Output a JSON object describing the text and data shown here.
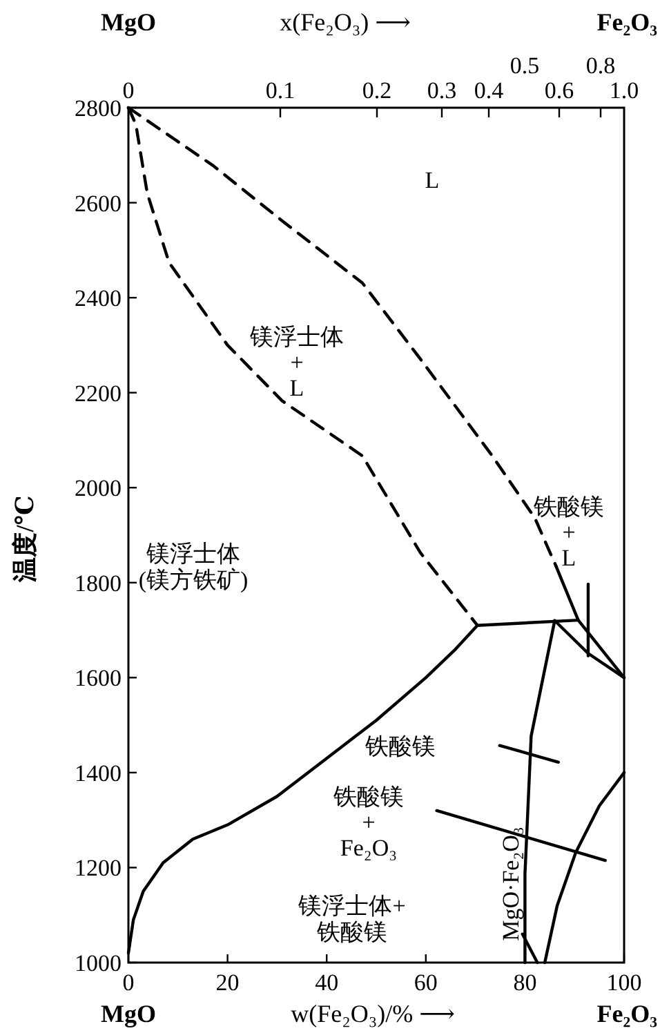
{
  "chart_data": {
    "type": "line",
    "xlabel": "w(Fe₂O₃)/% ⟶",
    "x2label": "x(Fe₂O₃) ⟶",
    "ylabel": "温度/℃",
    "xlim": [
      0,
      100
    ],
    "ylim": [
      1000,
      2800
    ],
    "xticks": [
      0,
      20,
      40,
      60,
      80,
      100
    ],
    "yticks": [
      1000,
      1200,
      1400,
      1600,
      1800,
      2000,
      2200,
      2400,
      2600,
      2800
    ],
    "grid": false,
    "series": [
      {
        "color": "#000000",
        "line_style": "dashed",
        "x": [
          0,
          17.1,
          31,
          47.2,
          58.9,
          73.4,
          82,
          86.25
        ],
        "values": [
          2800,
          2678,
          2562,
          2431,
          2271,
          2067,
          1936,
          1835
        ]
      },
      {
        "color": "#000000",
        "line_style": "dashed",
        "x": [
          0,
          1.5,
          3.8,
          8.2,
          20,
          31,
          47.2,
          58.9,
          70.4
        ],
        "values": [
          2800,
          2765,
          2620,
          2474,
          2300,
          2183,
          2067,
          1863,
          1710
        ]
      },
      {
        "color": "#000000",
        "line_style": "solid",
        "x": [
          86.25,
          90.75,
          100
        ],
        "values": [
          1835,
          1721,
          1600
        ]
      },
      {
        "color": "#000000",
        "line_style": "solid",
        "x": [
          70.4,
          90.75
        ],
        "values": [
          1710,
          1721
        ]
      },
      {
        "color": "#000000",
        "line_style": "solid",
        "x": [
          86,
          92.75,
          100
        ],
        "values": [
          1720,
          1651,
          1600
        ]
      },
      {
        "color": "#000000",
        "line_style": "solid",
        "x": [
          86,
          81.25,
          80,
          80
        ],
        "values": [
          1720,
          1477,
          1186,
          1000
        ]
      },
      {
        "color": "#000000",
        "line_style": "solid",
        "x": [
          0,
          1,
          3,
          7,
          13,
          20,
          30,
          40,
          50,
          60,
          66,
          70.4
        ],
        "values": [
          1020,
          1090,
          1150,
          1210,
          1260,
          1290,
          1350,
          1430,
          1510,
          1600,
          1660,
          1710
        ]
      },
      {
        "color": "#000000",
        "line_style": "solid",
        "x": [
          84,
          86.5,
          90.25,
          95,
          100
        ],
        "values": [
          1000,
          1120,
          1232,
          1330,
          1400
        ]
      },
      {
        "color": "#000000",
        "line_style": "solid",
        "x": [
          79.5,
          82.5
        ],
        "values": [
          1060,
          1000
        ]
      },
      {
        "color": "#000000",
        "line_style": "solid",
        "x": [
          74.9,
          86.75
        ],
        "values": [
          1457,
          1422
        ]
      },
      {
        "color": "#000000",
        "line_style": "solid",
        "x": [
          62.2,
          96.2
        ],
        "values": [
          1320,
          1215
        ]
      },
      {
        "color": "#000000",
        "line_style": "solid",
        "x": [
          92.75,
          92.75
        ],
        "values": [
          1797,
          1646
        ]
      }
    ],
    "annotations": [
      "L",
      "镁浮士体\n+\nL",
      "铁酸镁\n+\nL",
      "镁浮士体\n(镁方铁矿)",
      "铁酸镁",
      "铁酸镁\n+\nFe₂O₃",
      "镁浮士体+\n铁酸镁",
      "MgO·Fe₂O₃",
      "MgO",
      "Fe₂O₃",
      "MgO",
      "Fe₂O₃",
      "0",
      "0.1",
      "0.2",
      "0.3",
      "0.4",
      "0.5",
      "0.6",
      "0.8",
      "1.0"
    ]
  }
}
